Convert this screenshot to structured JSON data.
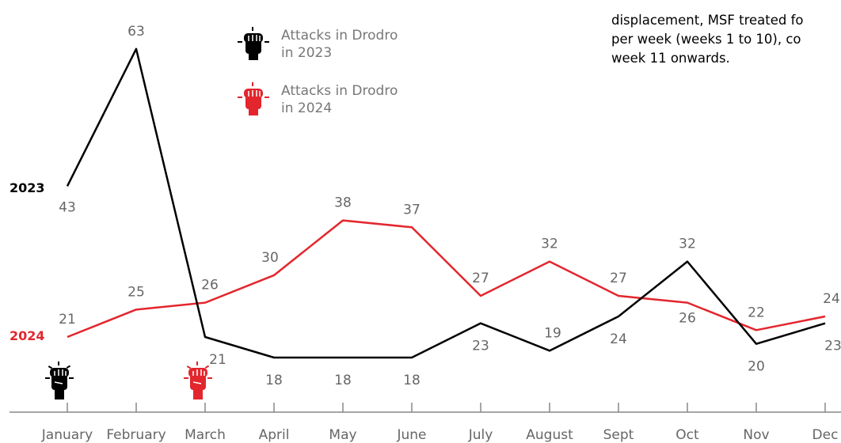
{
  "note": {
    "lines": [
      "displacement, MSF treated fo",
      "per week (weeks 1 to 10), co",
      "week 11 onwards."
    ]
  },
  "legend": [
    {
      "label_line1": "Attacks in Drodro",
      "label_line2": "in 2023",
      "icon": "fist-icon-black",
      "color": "#000000"
    },
    {
      "label_line1": "Attacks in Drodro",
      "label_line2": "in 2024",
      "icon": "fist-icon-red",
      "color": "#e3262d"
    }
  ],
  "colors": {
    "series_2023": "#000000",
    "series_2024": "#e3262d",
    "axis": "#888888",
    "label": "#666666"
  },
  "chart_data": {
    "type": "line",
    "categories": [
      "January",
      "February",
      "March",
      "April",
      "May",
      "June",
      "July",
      "August",
      "Sept",
      "Oct",
      "Nov",
      "Dec"
    ],
    "series": [
      {
        "name": "2023",
        "values": [
          43,
          63,
          21,
          18,
          18,
          18,
          23,
          19,
          24,
          32,
          20,
          23
        ]
      },
      {
        "name": "2024",
        "values": [
          21,
          25,
          26,
          30,
          38,
          37,
          27,
          32,
          27,
          26,
          22,
          24
        ]
      }
    ],
    "grid": false,
    "legend": "top-center"
  }
}
